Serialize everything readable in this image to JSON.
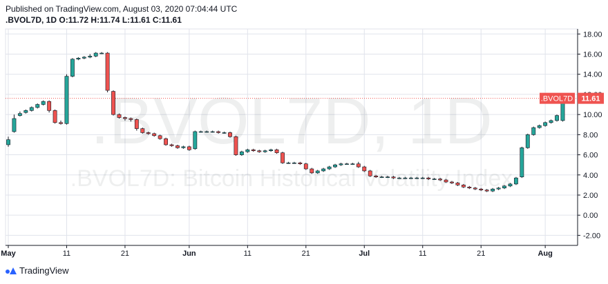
{
  "header": {
    "published": "Published on TradingView.com, August 03, 2020 07:04:44 UTC",
    "symbol_interval": ".BVOL7D, 1D",
    "o_label": "O:",
    "o_value": "11.72",
    "h_label": "H:",
    "h_value": "11.74",
    "l_label": "L:",
    "l_value": "11.61",
    "c_label": "C:",
    "c_value": "11.61"
  },
  "watermark": {
    "line1": ".BVOL7D, 1D",
    "line2": ".BVOL7D: Bitcoin Historical Volatility Index"
  },
  "footer": {
    "brand": "TradingView"
  },
  "colors": {
    "up": "#26a69a",
    "down": "#ef5350",
    "grid": "#e0e3eb",
    "price_tag": "#ef5350"
  },
  "chart_data": {
    "type": "candlestick",
    "ylim": [
      -3,
      18.5
    ],
    "y_ticks": [
      "18.00",
      "16.00",
      "14.00",
      "12.00",
      "10.00",
      "8.00",
      "6.00",
      "4.00",
      "2.00",
      "0.00",
      "-2.00"
    ],
    "y_tick_values": [
      18,
      16,
      14,
      12,
      10,
      8,
      6,
      4,
      2,
      0,
      -2
    ],
    "x_ticks": [
      {
        "label": "May",
        "index": 0
      },
      {
        "label": "11",
        "index": 10
      },
      {
        "label": "21",
        "index": 20
      },
      {
        "label": "Jun",
        "index": 31
      },
      {
        "label": "11",
        "index": 41
      },
      {
        "label": "21",
        "index": 51
      },
      {
        "label": "Jul",
        "index": 61
      },
      {
        "label": "11",
        "index": 71
      },
      {
        "label": "21",
        "index": 81
      },
      {
        "label": "Aug",
        "index": 92
      }
    ],
    "last_price": {
      "label": ".BVOL7D",
      "value": "11.61",
      "y": 11.61
    },
    "candles": [
      [
        7.0,
        7.8,
        6.8,
        7.5
      ],
      [
        8.3,
        10.0,
        8.2,
        9.6
      ],
      [
        9.9,
        10.3,
        9.8,
        10.1
      ],
      [
        10.2,
        10.5,
        10.1,
        10.4
      ],
      [
        10.4,
        10.8,
        10.3,
        10.7
      ],
      [
        10.7,
        11.1,
        10.6,
        11.0
      ],
      [
        11.0,
        11.4,
        10.9,
        11.3
      ],
      [
        11.3,
        11.4,
        10.2,
        10.4
      ],
      [
        10.4,
        10.5,
        9.1,
        9.2
      ],
      [
        9.2,
        9.4,
        9.0,
        9.1
      ],
      [
        9.1,
        14.0,
        9.0,
        13.8
      ],
      [
        13.8,
        15.6,
        13.7,
        15.5
      ],
      [
        15.5,
        15.7,
        15.4,
        15.6
      ],
      [
        15.6,
        15.8,
        15.5,
        15.7
      ],
      [
        15.7,
        16.0,
        15.6,
        15.8
      ],
      [
        15.8,
        16.2,
        15.7,
        16.1
      ],
      [
        16.1,
        16.2,
        16.0,
        16.1
      ],
      [
        16.1,
        16.2,
        12.2,
        12.4
      ],
      [
        12.3,
        12.4,
        9.9,
        10.0
      ],
      [
        10.0,
        10.1,
        9.6,
        9.7
      ],
      [
        9.7,
        9.8,
        9.4,
        9.6
      ],
      [
        9.6,
        9.7,
        9.3,
        9.5
      ],
      [
        9.5,
        9.6,
        8.4,
        8.6
      ],
      [
        8.6,
        8.7,
        8.1,
        8.2
      ],
      [
        8.2,
        8.3,
        8.0,
        8.1
      ],
      [
        8.1,
        8.2,
        7.8,
        7.9
      ],
      [
        7.9,
        8.0,
        7.5,
        7.6
      ],
      [
        7.6,
        7.7,
        6.9,
        7.0
      ],
      [
        7.0,
        7.1,
        6.8,
        6.9
      ],
      [
        6.9,
        7.0,
        6.6,
        6.7
      ],
      [
        6.7,
        6.9,
        6.6,
        6.8
      ],
      [
        6.8,
        6.9,
        6.4,
        6.5
      ],
      [
        6.6,
        8.4,
        6.5,
        8.3
      ],
      [
        8.3,
        8.4,
        8.2,
        8.3
      ],
      [
        8.3,
        8.4,
        8.2,
        8.3
      ],
      [
        8.3,
        8.4,
        8.2,
        8.3
      ],
      [
        8.3,
        8.4,
        8.1,
        8.2
      ],
      [
        8.2,
        8.3,
        8.1,
        8.2
      ],
      [
        8.2,
        8.3,
        7.7,
        7.8
      ],
      [
        7.8,
        7.9,
        5.9,
        6.0
      ],
      [
        6.0,
        6.4,
        5.9,
        6.3
      ],
      [
        6.3,
        6.6,
        6.2,
        6.5
      ],
      [
        6.5,
        6.6,
        6.3,
        6.4
      ],
      [
        6.4,
        6.5,
        6.2,
        6.3
      ],
      [
        6.3,
        6.5,
        6.2,
        6.4
      ],
      [
        6.4,
        6.6,
        6.3,
        6.5
      ],
      [
        6.5,
        6.6,
        6.1,
        6.2
      ],
      [
        6.2,
        6.3,
        5.1,
        5.2
      ],
      [
        5.2,
        5.3,
        5.1,
        5.2
      ],
      [
        5.2,
        5.3,
        5.1,
        5.2
      ],
      [
        5.2,
        5.3,
        5.0,
        5.1
      ],
      [
        5.1,
        5.2,
        4.5,
        4.6
      ],
      [
        4.6,
        4.7,
        4.1,
        4.2
      ],
      [
        4.2,
        4.5,
        4.1,
        4.4
      ],
      [
        4.4,
        4.7,
        4.3,
        4.6
      ],
      [
        4.6,
        4.9,
        4.5,
        4.8
      ],
      [
        4.8,
        5.1,
        4.7,
        5.0
      ],
      [
        5.0,
        5.2,
        4.9,
        5.1
      ],
      [
        5.1,
        5.2,
        5.0,
        5.1
      ],
      [
        5.1,
        5.2,
        5.0,
        5.1
      ],
      [
        5.1,
        5.3,
        4.7,
        4.8
      ],
      [
        4.8,
        4.9,
        4.3,
        4.4
      ],
      [
        4.4,
        4.5,
        3.8,
        3.9
      ],
      [
        3.9,
        4.0,
        3.7,
        3.8
      ],
      [
        3.8,
        3.9,
        3.7,
        3.8
      ],
      [
        3.8,
        3.9,
        3.7,
        3.8
      ],
      [
        3.8,
        3.9,
        3.6,
        3.7
      ],
      [
        3.7,
        3.8,
        3.6,
        3.7
      ],
      [
        3.7,
        3.8,
        3.6,
        3.7
      ],
      [
        3.7,
        3.8,
        3.6,
        3.7
      ],
      [
        3.7,
        3.8,
        3.6,
        3.7
      ],
      [
        3.7,
        3.8,
        3.6,
        3.7
      ],
      [
        3.7,
        3.8,
        3.5,
        3.6
      ],
      [
        3.6,
        3.7,
        3.5,
        3.6
      ],
      [
        3.6,
        3.7,
        3.4,
        3.5
      ],
      [
        3.5,
        3.6,
        3.2,
        3.3
      ],
      [
        3.3,
        3.4,
        3.1,
        3.2
      ],
      [
        3.2,
        3.3,
        2.9,
        3.0
      ],
      [
        3.0,
        3.1,
        2.7,
        2.8
      ],
      [
        2.8,
        2.9,
        2.6,
        2.7
      ],
      [
        2.7,
        2.8,
        2.5,
        2.6
      ],
      [
        2.6,
        2.7,
        2.4,
        2.5
      ],
      [
        2.5,
        2.6,
        2.3,
        2.4
      ],
      [
        2.4,
        2.7,
        2.3,
        2.6
      ],
      [
        2.6,
        2.8,
        2.5,
        2.7
      ],
      [
        2.7,
        3.0,
        2.6,
        2.9
      ],
      [
        2.9,
        3.2,
        2.8,
        3.1
      ],
      [
        3.1,
        3.8,
        3.0,
        3.7
      ],
      [
        3.8,
        6.8,
        3.7,
        6.7
      ],
      [
        6.7,
        8.1,
        6.6,
        8.0
      ],
      [
        8.0,
        8.8,
        7.9,
        8.7
      ],
      [
        8.7,
        9.0,
        8.6,
        8.9
      ],
      [
        8.9,
        9.3,
        8.8,
        9.2
      ],
      [
        9.2,
        9.5,
        9.1,
        9.4
      ],
      [
        9.4,
        10.0,
        9.3,
        9.9
      ],
      [
        9.4,
        11.8,
        9.3,
        11.7
      ],
      [
        11.72,
        11.74,
        11.61,
        11.61
      ]
    ]
  }
}
